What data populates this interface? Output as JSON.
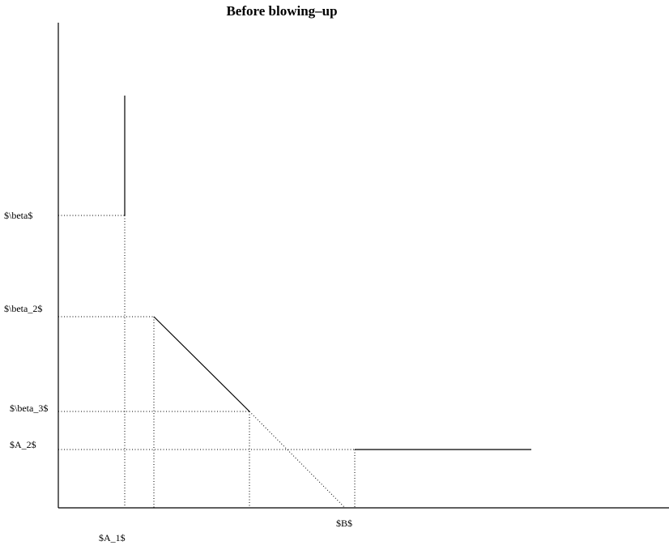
{
  "title": "Before blowing–up",
  "labels": {
    "beta": "$\\beta$",
    "beta_2": "$\\beta_2$",
    "beta_3": "$\\beta_3$",
    "A_2": "$A_2$",
    "B": "$B$",
    "A_1": "$A_1$"
  }
}
